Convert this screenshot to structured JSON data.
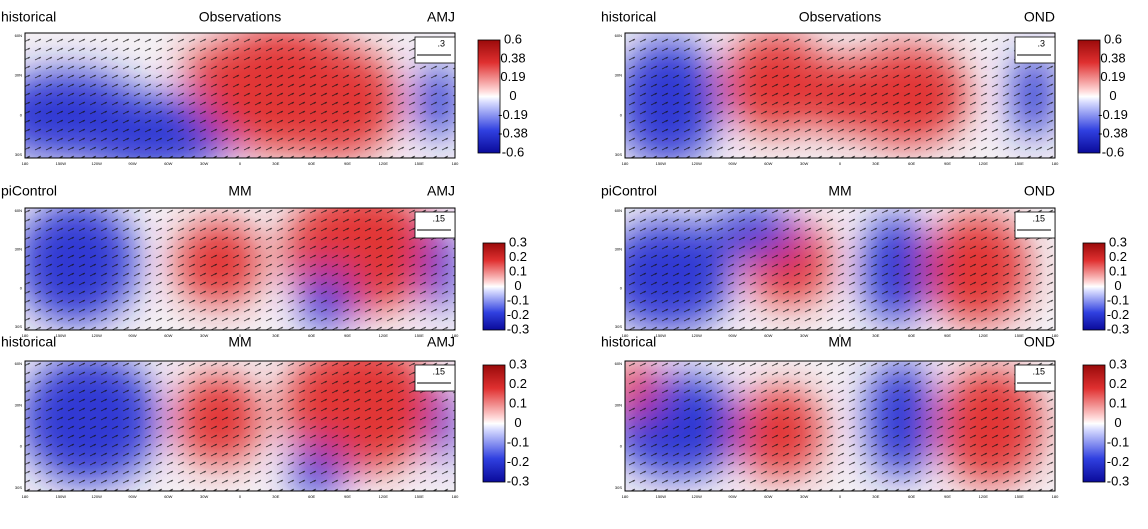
{
  "panels": [
    {
      "left": "historical",
      "center": "Observations",
      "right": "AMJ",
      "ref": ".3",
      "colorbar": [
        "0.6",
        "0.38",
        "0.19",
        "0",
        "-0.19",
        "-0.38",
        "-0.6"
      ]
    },
    {
      "left": "historical",
      "center": "Observations",
      "right": "OND",
      "ref": ".3",
      "colorbar": [
        "0.6",
        "0.38",
        "0.19",
        "0",
        "-0.19",
        "-0.38",
        "-0.6"
      ]
    },
    {
      "left": "piControl",
      "center": "MM",
      "right": "AMJ",
      "ref": ".15",
      "colorbar": [
        "0.3",
        "0.2",
        "0.1",
        "0",
        "-0.1",
        "-0.2",
        "-0.3"
      ]
    },
    {
      "left": "piControl",
      "center": "MM",
      "right": "OND",
      "ref": ".15",
      "colorbar": [
        "0.3",
        "0.2",
        "0.1",
        "0",
        "-0.1",
        "-0.2",
        "-0.3"
      ]
    },
    {
      "left": "historical",
      "center": "MM",
      "right": "AMJ",
      "ref": ".15",
      "colorbar": [
        "0.3",
        "0.2",
        "0.1",
        "0",
        "-0.1",
        "-0.2",
        "-0.3"
      ]
    },
    {
      "left": "historical",
      "center": "MM",
      "right": "OND",
      "ref": ".15",
      "colorbar": [
        "0.3",
        "0.2",
        "0.1",
        "0",
        "-0.1",
        "-0.2",
        "-0.3"
      ]
    }
  ],
  "lon_labels": [
    "180",
    "150W",
    "120W",
    "90W",
    "60W",
    "30W",
    "0",
    "30E",
    "60E",
    "90E",
    "120E",
    "150E",
    "180"
  ],
  "lat_labels": [
    "60N",
    "30N",
    "0",
    "30S"
  ]
}
